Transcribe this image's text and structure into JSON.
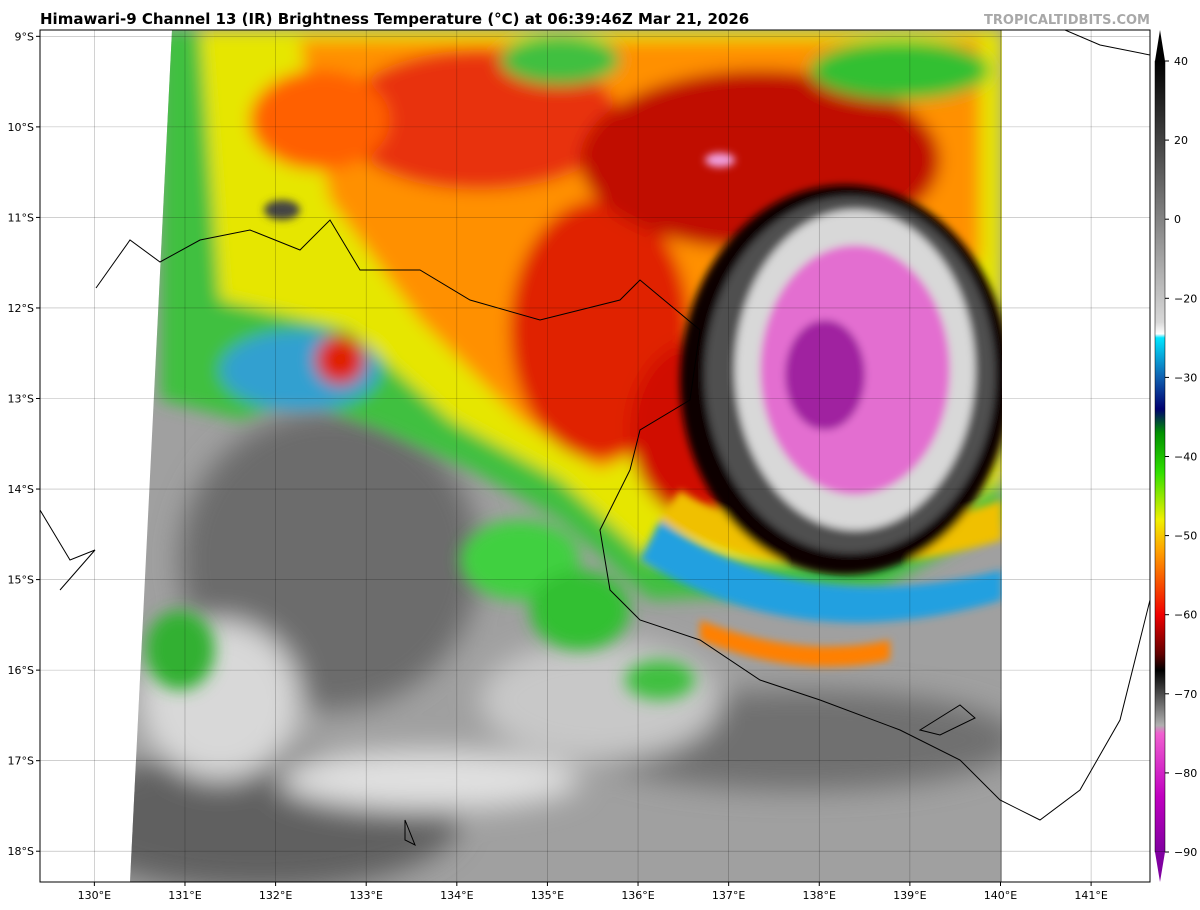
{
  "title": "Himawari-9 Channel 13 (IR) Brightness Temperature (°C) at 06:39:46Z Mar 21, 2026",
  "watermark": "TROPICALTIDBITS.COM",
  "map": {
    "ylim": [
      -18.34,
      -8.93
    ],
    "xlim": [
      129.4,
      141.65
    ],
    "yticks": [
      {
        "value": -9,
        "label": "9°S"
      },
      {
        "value": -10,
        "label": "10°S"
      },
      {
        "value": -11,
        "label": "11°S"
      },
      {
        "value": -12,
        "label": "12°S"
      },
      {
        "value": -13,
        "label": "13°S"
      },
      {
        "value": -14,
        "label": "14°S"
      },
      {
        "value": -15,
        "label": "15°S"
      },
      {
        "value": -16,
        "label": "16°S"
      },
      {
        "value": -17,
        "label": "17°S"
      },
      {
        "value": -18,
        "label": "18°S"
      }
    ],
    "xticks": [
      {
        "value": 130,
        "label": "130°E"
      },
      {
        "value": 131,
        "label": "131°E"
      },
      {
        "value": 132,
        "label": "132°E"
      },
      {
        "value": 133,
        "label": "133°E"
      },
      {
        "value": 134,
        "label": "134°E"
      },
      {
        "value": 135,
        "label": "135°E"
      },
      {
        "value": 136,
        "label": "136°E"
      },
      {
        "value": 137,
        "label": "137°E"
      },
      {
        "value": 138,
        "label": "138°E"
      },
      {
        "value": 139,
        "label": "139°E"
      },
      {
        "value": 140,
        "label": "140°E"
      },
      {
        "value": 141,
        "label": "141°E"
      }
    ],
    "grid": true
  },
  "colorbar": {
    "ticks": [
      40,
      20,
      0,
      {
        "value": -20,
        "label": "−20"
      },
      {
        "value": -30,
        "label": "−30"
      },
      {
        "value": -40,
        "label": "−40"
      },
      {
        "value": -50,
        "label": "−50"
      },
      {
        "value": -60,
        "label": "−60"
      },
      {
        "value": -70,
        "label": "−70"
      },
      {
        "value": -80,
        "label": "−80"
      },
      {
        "value": -90,
        "label": "−90"
      }
    ]
  }
}
